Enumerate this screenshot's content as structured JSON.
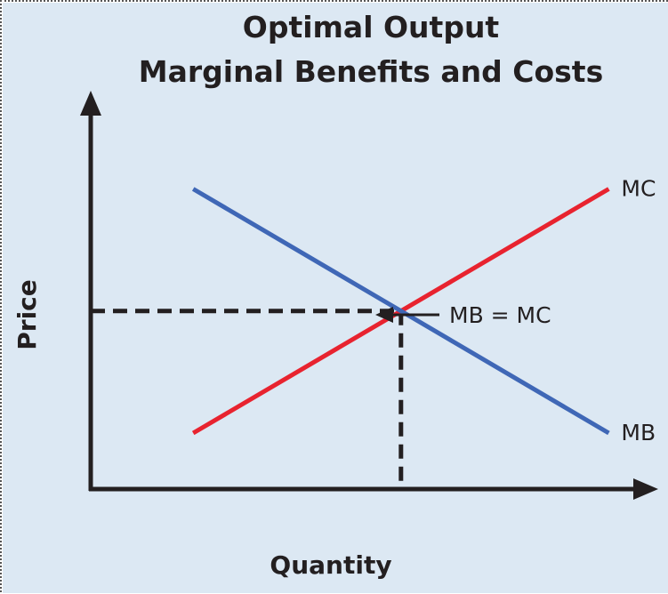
{
  "chart_data": {
    "type": "line",
    "title_lines": [
      "Optimal Output",
      "Marginal Benefits and Costs"
    ],
    "xlabel": "Quantity",
    "ylabel": "Price",
    "grid": false,
    "background_color": "#dce8f3",
    "axis_color": "#231f20",
    "series": [
      {
        "name": "MC",
        "color": "#e8232f",
        "points": [
          [
            0.18,
            0.14
          ],
          [
            0.91,
            0.75
          ]
        ]
      },
      {
        "name": "MB",
        "color": "#3f67b6",
        "points": [
          [
            0.18,
            0.75
          ],
          [
            0.91,
            0.14
          ]
        ]
      }
    ],
    "equilibrium": {
      "x": 0.545,
      "y": 0.445,
      "annotation": "MB = MC"
    }
  }
}
